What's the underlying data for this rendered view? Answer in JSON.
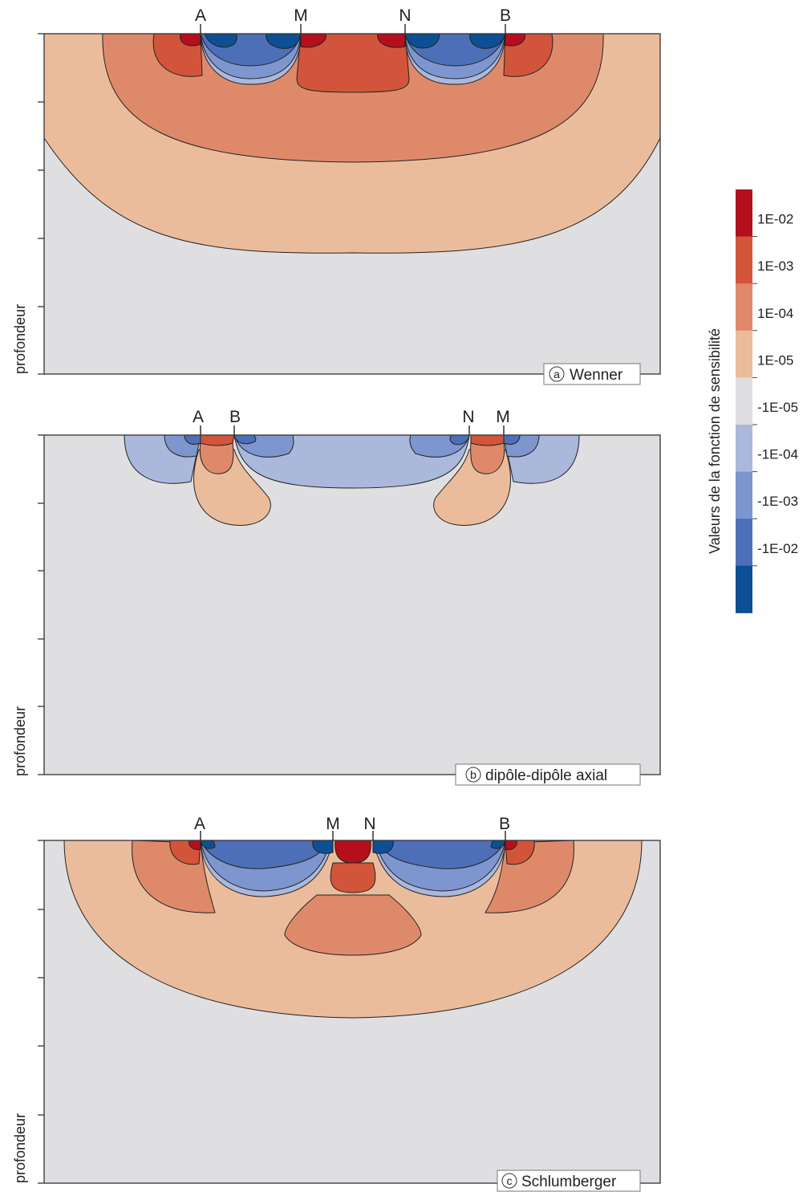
{
  "depth_label": "profondeur",
  "panels": [
    {
      "letter": "a",
      "name": "Wenner",
      "electrodes": [
        "A",
        "M",
        "N",
        "B"
      ]
    },
    {
      "letter": "b",
      "name": "dipôle-dipôle axial",
      "electrodes": [
        "A",
        "B",
        "N",
        "M"
      ]
    },
    {
      "letter": "c",
      "name": "Schlumberger",
      "electrodes": [
        "A",
        "M",
        "N",
        "B"
      ]
    }
  ],
  "legend": {
    "title": "Valeurs de la fonction de sensibilité",
    "ticks": [
      "1E-02",
      "1E-03",
      "1E-04",
      "1E-05",
      "-1E-05",
      "-1E-04",
      "-1E-03",
      "-1E-02"
    ],
    "colors": [
      "#b50f1e",
      "#d2553b",
      "#de8a6a",
      "#ebbc9c",
      "#dfdfe1",
      "#aab8dc",
      "#7e96cf",
      "#4d6fb8",
      "#0d4f94"
    ]
  }
}
